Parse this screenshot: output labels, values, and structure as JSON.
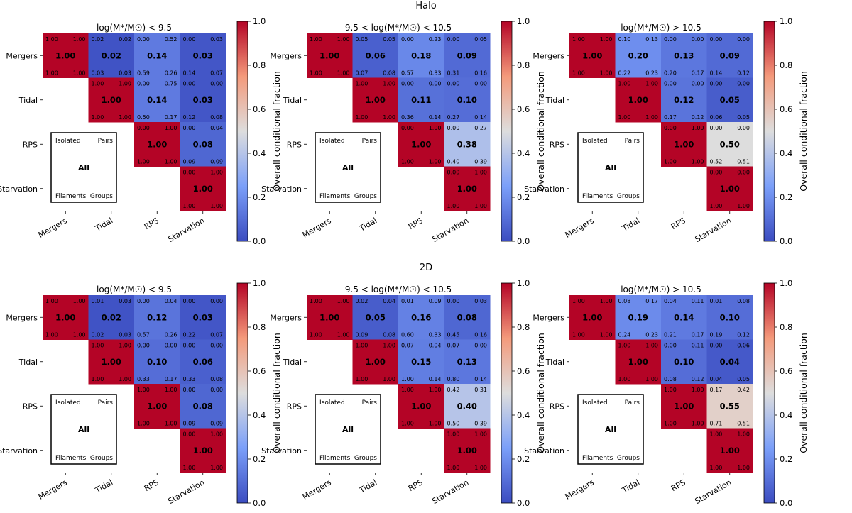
{
  "figure": {
    "row_titles": [
      "Halo",
      "2D"
    ],
    "labels": [
      "Mergers",
      "Tidal",
      "RPS",
      "Starvation"
    ],
    "legend_box": {
      "isolated": "Isolated",
      "pairs": "Pairs",
      "all": "All",
      "filaments": "Filaments",
      "groups": "Groups"
    },
    "colorbar": {
      "label": "Overall conditional fraction",
      "ticks": [
        "0.0",
        "0.2",
        "0.4",
        "0.6",
        "0.8",
        "1.0"
      ],
      "range": [
        0,
        1
      ],
      "colormap": "coolwarm"
    }
  },
  "chart_data": [
    {
      "type": "heatmap",
      "row": "Halo",
      "title": "log(M*/M☉) < 9.5",
      "cells": [
        {
          "r": 0,
          "c": 0,
          "main": "1.00",
          "tl": "1.00",
          "tr": "1.00",
          "bl": "1.00",
          "br": "1.00"
        },
        {
          "r": 0,
          "c": 1,
          "main": "0.02",
          "tl": "0.02",
          "tr": "0.02",
          "bl": "0.03",
          "br": "0.03"
        },
        {
          "r": 0,
          "c": 2,
          "main": "0.14",
          "tl": "0.00",
          "tr": "0.52",
          "bl": "0.59",
          "br": "0.26"
        },
        {
          "r": 0,
          "c": 3,
          "main": "0.03",
          "tl": "0.00",
          "tr": "0.03",
          "bl": "0.14",
          "br": "0.07"
        },
        {
          "r": 1,
          "c": 1,
          "main": "1.00",
          "tl": "1.00",
          "tr": "1.00",
          "bl": "1.00",
          "br": "1.00"
        },
        {
          "r": 1,
          "c": 2,
          "main": "0.14",
          "tl": "0.00",
          "tr": "0.75",
          "bl": "0.50",
          "br": "0.17"
        },
        {
          "r": 1,
          "c": 3,
          "main": "0.03",
          "tl": "0.00",
          "tr": "0.00",
          "bl": "0.12",
          "br": "0.08"
        },
        {
          "r": 2,
          "c": 2,
          "main": "1.00",
          "tl": "0.00",
          "tr": "1.00",
          "bl": "1.00",
          "br": "1.00"
        },
        {
          "r": 2,
          "c": 3,
          "main": "0.08",
          "tl": "0.00",
          "tr": "0.04",
          "bl": "0.09",
          "br": "0.09"
        },
        {
          "r": 3,
          "c": 3,
          "main": "1.00",
          "tl": "0.00",
          "tr": "1.00",
          "bl": "1.00",
          "br": "1.00"
        }
      ]
    },
    {
      "type": "heatmap",
      "row": "Halo",
      "title": "9.5 < log(M*/M☉) < 10.5",
      "cells": [
        {
          "r": 0,
          "c": 0,
          "main": "1.00",
          "tl": "1.00",
          "tr": "1.00",
          "bl": "1.00",
          "br": "1.00"
        },
        {
          "r": 0,
          "c": 1,
          "main": "0.06",
          "tl": "0.05",
          "tr": "0.05",
          "bl": "0.07",
          "br": "0.08"
        },
        {
          "r": 0,
          "c": 2,
          "main": "0.18",
          "tl": "0.00",
          "tr": "0.23",
          "bl": "0.57",
          "br": "0.33"
        },
        {
          "r": 0,
          "c": 3,
          "main": "0.09",
          "tl": "0.00",
          "tr": "0.05",
          "bl": "0.31",
          "br": "0.16"
        },
        {
          "r": 1,
          "c": 1,
          "main": "1.00",
          "tl": "1.00",
          "tr": "1.00",
          "bl": "1.00",
          "br": "1.00"
        },
        {
          "r": 1,
          "c": 2,
          "main": "0.11",
          "tl": "0.00",
          "tr": "0.00",
          "bl": "0.36",
          "br": "0.14"
        },
        {
          "r": 1,
          "c": 3,
          "main": "0.10",
          "tl": "0.00",
          "tr": "0.00",
          "bl": "0.27",
          "br": "0.14"
        },
        {
          "r": 2,
          "c": 2,
          "main": "1.00",
          "tl": "0.00",
          "tr": "1.00",
          "bl": "1.00",
          "br": "1.00"
        },
        {
          "r": 2,
          "c": 3,
          "main": "0.38",
          "tl": "0.00",
          "tr": "0.27",
          "bl": "0.40",
          "br": "0.39"
        },
        {
          "r": 3,
          "c": 3,
          "main": "1.00",
          "tl": "0.00",
          "tr": "1.00",
          "bl": "1.00",
          "br": "1.00"
        }
      ]
    },
    {
      "type": "heatmap",
      "row": "Halo",
      "title": "log(M*/M☉) > 10.5",
      "cells": [
        {
          "r": 0,
          "c": 0,
          "main": "1.00",
          "tl": "1.00",
          "tr": "1.00",
          "bl": "1.00",
          "br": "1.00"
        },
        {
          "r": 0,
          "c": 1,
          "main": "0.20",
          "tl": "0.10",
          "tr": "0.13",
          "bl": "0.22",
          "br": "0.23"
        },
        {
          "r": 0,
          "c": 2,
          "main": "0.13",
          "tl": "0.00",
          "tr": "0.00",
          "bl": "0.20",
          "br": "0.17"
        },
        {
          "r": 0,
          "c": 3,
          "main": "0.09",
          "tl": "0.00",
          "tr": "0.00",
          "bl": "0.14",
          "br": "0.12"
        },
        {
          "r": 1,
          "c": 1,
          "main": "1.00",
          "tl": "1.00",
          "tr": "1.00",
          "bl": "1.00",
          "br": "1.00"
        },
        {
          "r": 1,
          "c": 2,
          "main": "0.12",
          "tl": "0.00",
          "tr": "0.00",
          "bl": "0.17",
          "br": "0.12"
        },
        {
          "r": 1,
          "c": 3,
          "main": "0.05",
          "tl": "0.00",
          "tr": "0.00",
          "bl": "0.06",
          "br": "0.05"
        },
        {
          "r": 2,
          "c": 2,
          "main": "1.00",
          "tl": "0.00",
          "tr": "1.00",
          "bl": "1.00",
          "br": "1.00"
        },
        {
          "r": 2,
          "c": 3,
          "main": "0.50",
          "tl": "0.00",
          "tr": "0.00",
          "bl": "0.52",
          "br": "0.51"
        },
        {
          "r": 3,
          "c": 3,
          "main": "1.00",
          "tl": "0.00",
          "tr": "0.00",
          "bl": "1.00",
          "br": "1.00"
        }
      ]
    },
    {
      "type": "heatmap",
      "row": "2D",
      "title": "log(M*/M☉) < 9.5",
      "cells": [
        {
          "r": 0,
          "c": 0,
          "main": "1.00",
          "tl": "1.00",
          "tr": "1.00",
          "bl": "1.00",
          "br": "1.00"
        },
        {
          "r": 0,
          "c": 1,
          "main": "0.02",
          "tl": "0.01",
          "tr": "0.03",
          "bl": "0.02",
          "br": "0.03"
        },
        {
          "r": 0,
          "c": 2,
          "main": "0.12",
          "tl": "0.00",
          "tr": "0.04",
          "bl": "0.57",
          "br": "0.26"
        },
        {
          "r": 0,
          "c": 3,
          "main": "0.03",
          "tl": "0.00",
          "tr": "0.00",
          "bl": "0.22",
          "br": "0.07"
        },
        {
          "r": 1,
          "c": 1,
          "main": "1.00",
          "tl": "1.00",
          "tr": "1.00",
          "bl": "1.00",
          "br": "1.00"
        },
        {
          "r": 1,
          "c": 2,
          "main": "0.10",
          "tl": "0.00",
          "tr": "0.00",
          "bl": "0.33",
          "br": "0.17"
        },
        {
          "r": 1,
          "c": 3,
          "main": "0.06",
          "tl": "0.00",
          "tr": "0.00",
          "bl": "0.33",
          "br": "0.08"
        },
        {
          "r": 2,
          "c": 2,
          "main": "1.00",
          "tl": "1.00",
          "tr": "1.00",
          "bl": "1.00",
          "br": "1.00"
        },
        {
          "r": 2,
          "c": 3,
          "main": "0.08",
          "tl": "0.00",
          "tr": "0.00",
          "bl": "0.09",
          "br": "0.09"
        },
        {
          "r": 3,
          "c": 3,
          "main": "1.00",
          "tl": "0.00",
          "tr": "1.00",
          "bl": "1.00",
          "br": "1.00"
        }
      ]
    },
    {
      "type": "heatmap",
      "row": "2D",
      "title": "9.5 < log(M*/M☉) < 10.5",
      "cells": [
        {
          "r": 0,
          "c": 0,
          "main": "1.00",
          "tl": "1.00",
          "tr": "1.00",
          "bl": "1.00",
          "br": "1.00"
        },
        {
          "r": 0,
          "c": 1,
          "main": "0.05",
          "tl": "0.02",
          "tr": "0.04",
          "bl": "0.09",
          "br": "0.08"
        },
        {
          "r": 0,
          "c": 2,
          "main": "0.16",
          "tl": "0.01",
          "tr": "0.09",
          "bl": "0.60",
          "br": "0.33"
        },
        {
          "r": 0,
          "c": 3,
          "main": "0.08",
          "tl": "0.00",
          "tr": "0.03",
          "bl": "0.45",
          "br": "0.16"
        },
        {
          "r": 1,
          "c": 1,
          "main": "1.00",
          "tl": "1.00",
          "tr": "1.00",
          "bl": "1.00",
          "br": "1.00"
        },
        {
          "r": 1,
          "c": 2,
          "main": "0.15",
          "tl": "0.07",
          "tr": "0.04",
          "bl": "1.00",
          "br": "0.14"
        },
        {
          "r": 1,
          "c": 3,
          "main": "0.13",
          "tl": "0.07",
          "tr": "0.00",
          "bl": "0.80",
          "br": "0.14"
        },
        {
          "r": 2,
          "c": 2,
          "main": "1.00",
          "tl": "1.00",
          "tr": "1.00",
          "bl": "1.00",
          "br": "1.00"
        },
        {
          "r": 2,
          "c": 3,
          "main": "0.40",
          "tl": "0.42",
          "tr": "0.31",
          "bl": "0.50",
          "br": "0.39"
        },
        {
          "r": 3,
          "c": 3,
          "main": "1.00",
          "tl": "1.00",
          "tr": "1.00",
          "bl": "1.00",
          "br": "1.00"
        }
      ]
    },
    {
      "type": "heatmap",
      "row": "2D",
      "title": "log(M*/M☉) > 10.5",
      "cells": [
        {
          "r": 0,
          "c": 0,
          "main": "1.00",
          "tl": "1.00",
          "tr": "1.00",
          "bl": "1.00",
          "br": "1.00"
        },
        {
          "r": 0,
          "c": 1,
          "main": "0.19",
          "tl": "0.08",
          "tr": "0.17",
          "bl": "0.24",
          "br": "0.23"
        },
        {
          "r": 0,
          "c": 2,
          "main": "0.14",
          "tl": "0.04",
          "tr": "0.11",
          "bl": "0.21",
          "br": "0.17"
        },
        {
          "r": 0,
          "c": 3,
          "main": "0.10",
          "tl": "0.01",
          "tr": "0.08",
          "bl": "0.19",
          "br": "0.12"
        },
        {
          "r": 1,
          "c": 1,
          "main": "1.00",
          "tl": "1.00",
          "tr": "1.00",
          "bl": "1.00",
          "br": "1.00"
        },
        {
          "r": 1,
          "c": 2,
          "main": "0.10",
          "tl": "0.00",
          "tr": "0.11",
          "bl": "0.08",
          "br": "0.12"
        },
        {
          "r": 1,
          "c": 3,
          "main": "0.04",
          "tl": "0.00",
          "tr": "0.06",
          "bl": "0.04",
          "br": "0.05"
        },
        {
          "r": 2,
          "c": 2,
          "main": "1.00",
          "tl": "1.00",
          "tr": "1.00",
          "bl": "1.00",
          "br": "1.00"
        },
        {
          "r": 2,
          "c": 3,
          "main": "0.55",
          "tl": "0.17",
          "tr": "0.42",
          "bl": "0.71",
          "br": "0.51"
        },
        {
          "r": 3,
          "c": 3,
          "main": "1.00",
          "tl": "1.00",
          "tr": "1.00",
          "bl": "1.00",
          "br": "1.00"
        }
      ]
    }
  ]
}
